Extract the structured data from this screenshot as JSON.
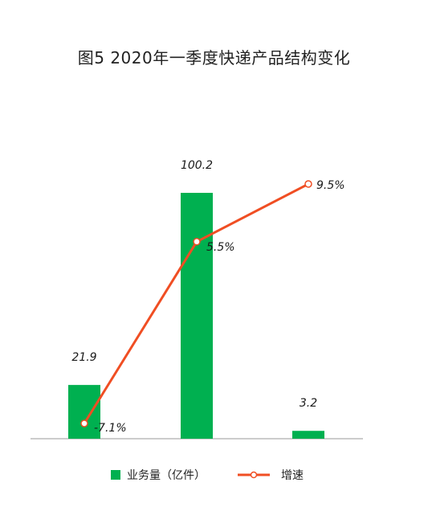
{
  "chart_data": {
    "type": "bar+line",
    "title": "图5 2020年一季度快递产品结构变化",
    "categories": [
      "",
      "",
      ""
    ],
    "series": [
      {
        "name": "业务量（亿件）",
        "type": "bar",
        "color": "#00b050",
        "values": [
          21.9,
          100.2,
          3.2
        ],
        "labels": [
          "21.9",
          "100.2",
          "3.2"
        ]
      },
      {
        "name": "增速",
        "type": "line",
        "color": "#f04e23",
        "values": [
          -7.1,
          5.5,
          9.5
        ],
        "labels": [
          "-7.1%",
          "5.5%",
          "9.5%"
        ]
      }
    ],
    "legend_position": "bottom",
    "grid": false
  }
}
